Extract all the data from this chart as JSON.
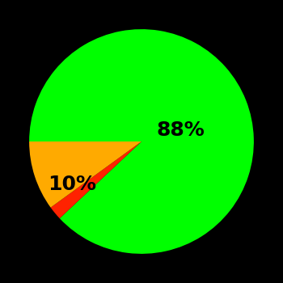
{
  "slices": [
    88,
    2,
    10
  ],
  "colors": [
    "#00ff00",
    "#ff2200",
    "#ffaa00"
  ],
  "labels": [
    "88%",
    "",
    "10%"
  ],
  "background_color": "#000000",
  "label_fontsize": 18,
  "label_fontweight": "bold",
  "startangle": 180,
  "figsize": [
    3.5,
    3.5
  ],
  "dpi": 100,
  "label_positions": {
    "green": [
      0.35,
      0.1
    ],
    "yellow": [
      -0.62,
      -0.38
    ]
  }
}
